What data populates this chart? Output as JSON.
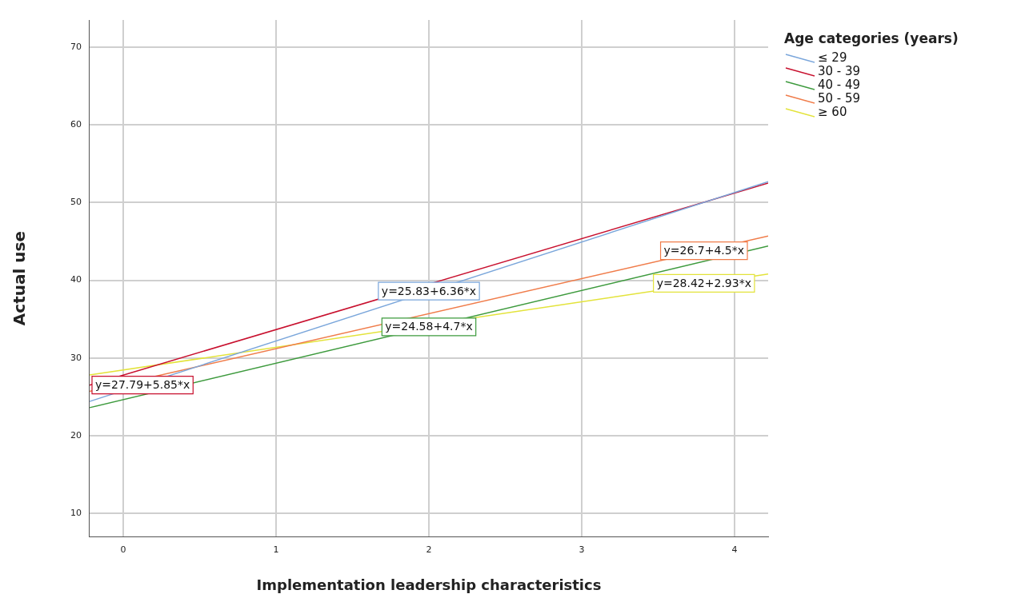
{
  "chart_data": {
    "type": "line",
    "xlabel": "Implementation leadership characteristics",
    "ylabel": "Actual use",
    "legend_title": "Age categories (years)",
    "x": [
      -0.22,
      4.22
    ],
    "series": [
      {
        "name": "≤ 29",
        "color": "#7aa6db",
        "values": [
          24.4,
          52.7
        ]
      },
      {
        "name": "30 - 39",
        "color": "#c8102e",
        "values": [
          26.5,
          52.5
        ]
      },
      {
        "name": "40 - 49",
        "color": "#3d9a3d",
        "values": [
          23.6,
          44.4
        ]
      },
      {
        "name": "50 - 59",
        "color": "#f07c4a",
        "values": [
          25.7,
          45.7
        ]
      },
      {
        "name": "≥ 60",
        "color": "#e3e33a",
        "values": [
          27.8,
          40.8
        ]
      }
    ],
    "annotations": [
      {
        "text": "y=25.83+6.36*x",
        "x": 2,
        "y": 38.6
      },
      {
        "text": "y=27.79+5.85*x",
        "x": -0.22,
        "y": 26.5
      },
      {
        "text": "y=24.58+4.7*x",
        "x": 2,
        "y": 34
      },
      {
        "text": "y=26.7+4.5*x",
        "x": 3.8,
        "y": 43.8
      },
      {
        "text": "y=28.42+2.93*x",
        "x": 3.8,
        "y": 39.6
      }
    ],
    "xlim": [
      -0.22,
      4.22
    ],
    "xticks": [
      0,
      1,
      2,
      3,
      4
    ],
    "ylim": [
      7,
      73.5
    ],
    "yticks": [
      10,
      20,
      30,
      40,
      50,
      60,
      70
    ],
    "grid": true,
    "legend": "top right",
    "marker": "none",
    "line_style": "solid"
  }
}
